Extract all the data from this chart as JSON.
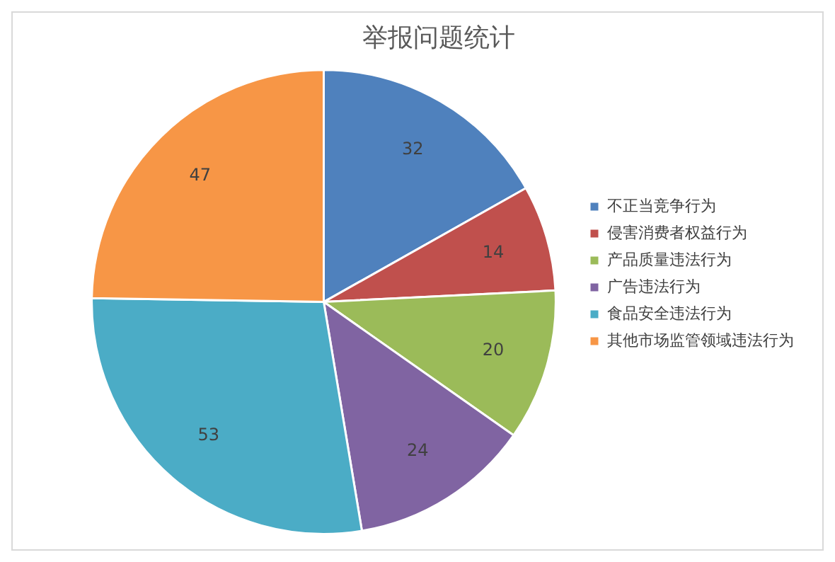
{
  "chart_data": {
    "type": "pie",
    "title": "举报问题统计",
    "categories": [
      "不正当竞争行为",
      "侵害消费者权益行为",
      "产品质量违法行为",
      "广告违法行为",
      "食品安全违法行为",
      "其他市场监管领域违法行为"
    ],
    "values": [
      32,
      14,
      20,
      24,
      53,
      47
    ],
    "colors": [
      "#4f81bd",
      "#c0504d",
      "#9bbb59",
      "#8064a2",
      "#4bacc6",
      "#f79646"
    ],
    "data_labels": true,
    "legend": "right"
  }
}
